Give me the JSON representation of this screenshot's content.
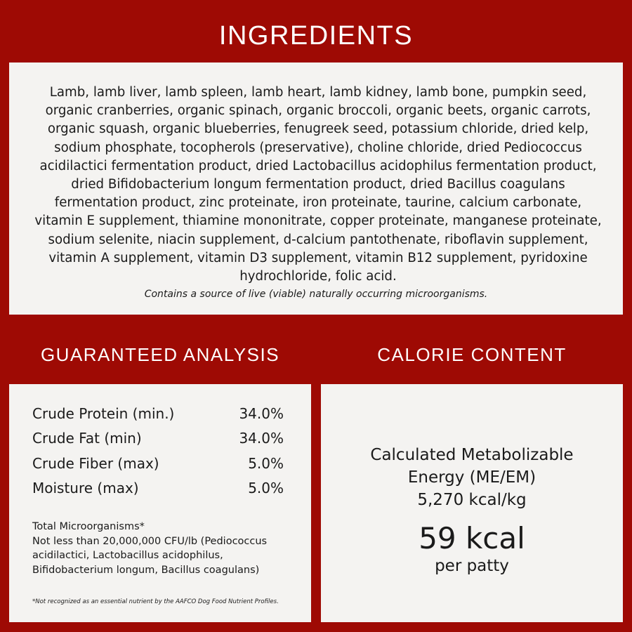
{
  "ingredients": {
    "title": "INGREDIENTS",
    "text": "Lamb, lamb liver, lamb spleen, lamb heart, lamb kidney, lamb bone, pumpkin seed, organic cranberries, organic spinach, organic broccoli, organic beets, organic carrots, organic squash, organic blueberries, fenugreek seed, potassium chloride, dried kelp, sodium phosphate, tocopherols (preservative), choline chloride, dried Pediococcus acidilactici fermentation product, dried Lactobacillus acidophilus fermentation product, dried Bifidobacterium longum fermentation product, dried Bacillus coagulans fermentation product, zinc proteinate, iron proteinate, taurine, calcium carbonate, vitamin E supplement, thiamine mononitrate, copper proteinate, manganese proteinate, sodium selenite, niacin supplement, d-calcium pantothenate, riboflavin supplement, vitamin A supplement, vitamin D3 supplement, vitamin B12 supplement, pyridoxine hydrochloride, folic acid.",
    "note": "Contains a source of live (viable) naturally occurring microorganisms."
  },
  "analysis": {
    "title": "GUARANTEED ANALYSIS",
    "rows": [
      {
        "label": "Crude Protein (min.)",
        "value": "34.0%"
      },
      {
        "label": "Crude Fat (min)",
        "value": "34.0%"
      },
      {
        "label": "Crude Fiber (max)",
        "value": "5.0%"
      },
      {
        "label": "Moisture (max)",
        "value": "5.0%"
      }
    ],
    "micro_title": "Total Microorganisms*",
    "micro_text": "Not less than 20,000,000 CFU/lb (Pediococcus acidilactici, Lactobacillus acidophilus, Bifidobacterium longum, Bacillus coagulans)",
    "footnote": "*Not recognized as an essential nutrient by the AAFCO Dog Food Nutrient Profiles."
  },
  "calorie": {
    "title": "CALORIE CONTENT",
    "label_1": "Calculated Metabolizable",
    "label_2": "Energy (ME/EM)",
    "per_kg": "5,270 kcal/kg",
    "per_unit_value": "59 kcal",
    "per_unit_label": "per patty"
  },
  "colors": {
    "background": "#9e0a04",
    "panel": "#f4f3f1"
  }
}
